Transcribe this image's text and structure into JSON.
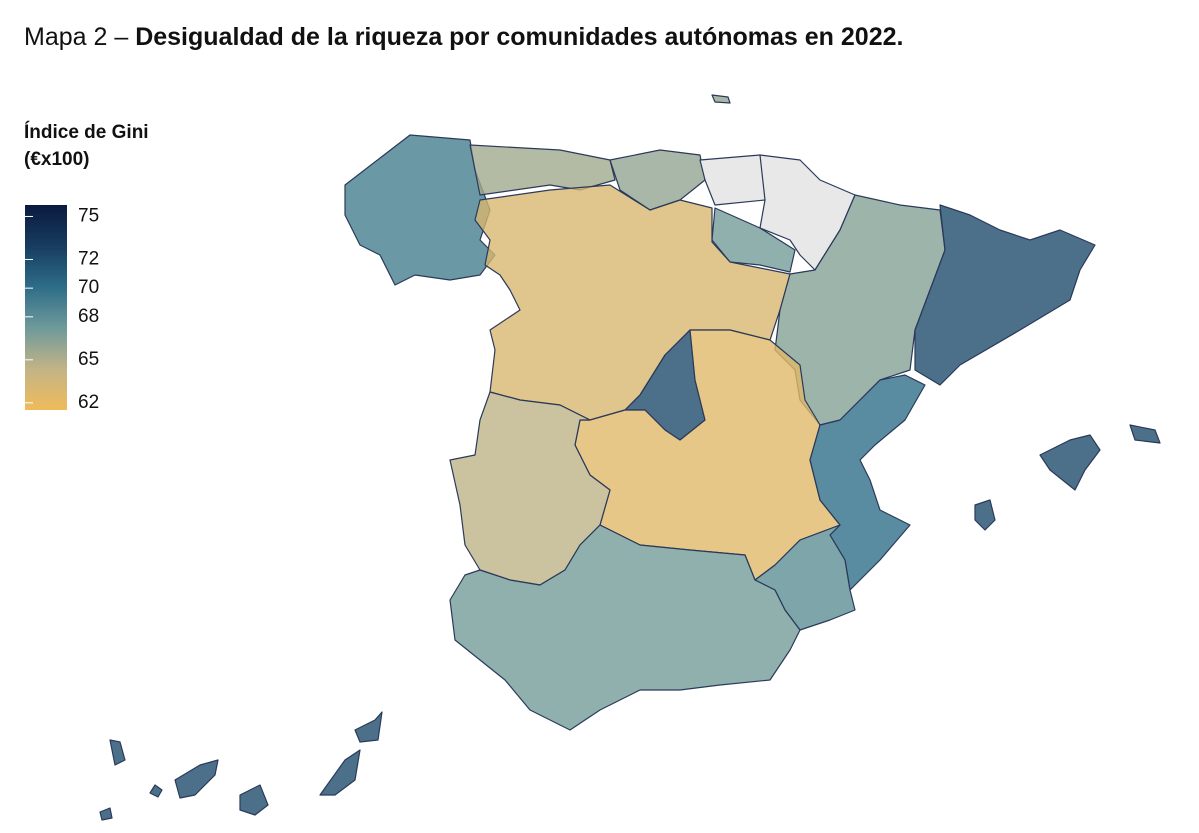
{
  "map_data": {
    "title_prefix": "Mapa 2 – ",
    "title": "Desigualdad de la riqueza por comunidades autónomas en 2022.",
    "legend_title": [
      "Índice de Gini",
      "(€x100)"
    ],
    "ticks": [
      75,
      72,
      70,
      68,
      65,
      62
    ],
    "clim": [
      61.5,
      75.8
    ],
    "colorscale": [
      "#f0bb5a",
      "#c2b486",
      "#6e9a9a",
      "#2e6d88",
      "#173c60",
      "#0a1a3e"
    ],
    "missing_color": "#e8e8e8",
    "values": [
      69,
      65.5,
      66,
      null,
      null,
      67,
      63,
      66.5,
      72,
      72,
      62.5,
      64.5,
      70,
      68,
      67,
      72,
      72
    ]
  }
}
